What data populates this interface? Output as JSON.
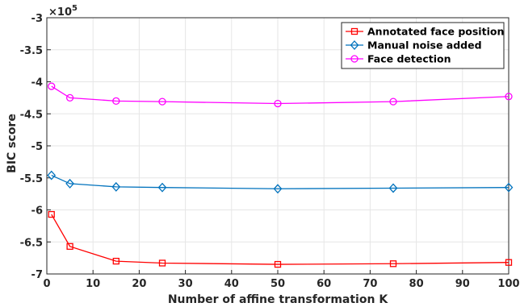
{
  "chart_data": {
    "type": "line",
    "xlabel": "Number of affine transformation K",
    "ylabel": "BIC score",
    "y_exponent_label": "×10",
    "y_exponent": "5",
    "xlim": [
      0,
      100
    ],
    "ylim": [
      -7,
      -3
    ],
    "xticks": [
      0,
      10,
      20,
      30,
      40,
      50,
      60,
      70,
      80,
      90,
      100
    ],
    "yticks": [
      -7,
      -6.5,
      -6,
      -5.5,
      -5,
      -4.5,
      -4,
      -3.5,
      -3
    ],
    "grid": true,
    "legend_position": "top-right",
    "x": [
      1,
      5,
      15,
      25,
      50,
      75,
      100
    ],
    "series": [
      {
        "name": "Annotated face position",
        "color": "#ff0000",
        "marker": "square",
        "values": [
          -6.07,
          -6.57,
          -6.8,
          -6.83,
          -6.85,
          -6.84,
          -6.82
        ]
      },
      {
        "name": "Manual noise added",
        "color": "#0072bd",
        "marker": "diamond",
        "values": [
          -5.46,
          -5.59,
          -5.64,
          -5.65,
          -5.67,
          -5.66,
          -5.65
        ]
      },
      {
        "name": "Face detection",
        "color": "#ff00ff",
        "marker": "circle",
        "values": [
          -4.07,
          -4.25,
          -4.3,
          -4.31,
          -4.34,
          -4.31,
          -4.23
        ]
      }
    ]
  }
}
